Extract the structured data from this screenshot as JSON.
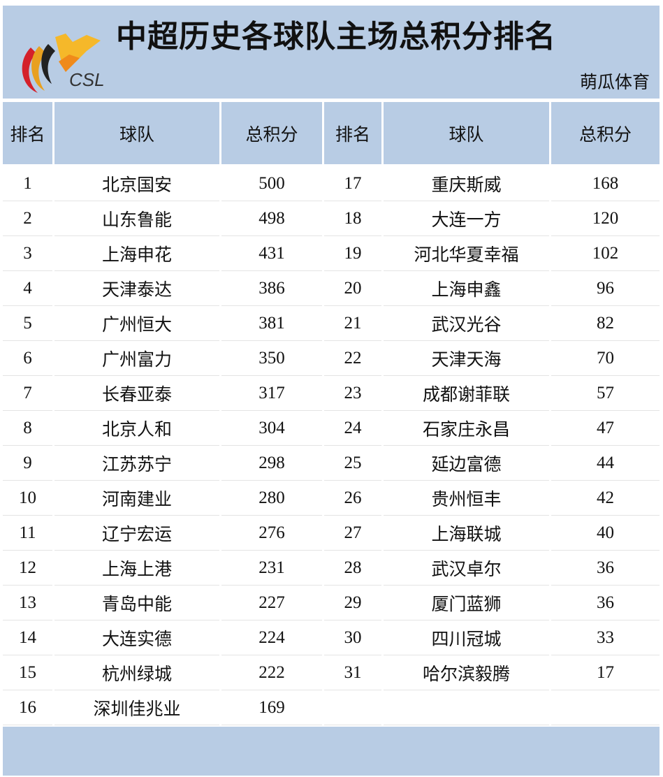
{
  "header": {
    "title": "中超历史各球队主场总积分排名",
    "brand": "萌瓜体育",
    "logo_text": "CSL"
  },
  "columns": [
    "排名",
    "球队",
    "总积分",
    "排名",
    "球队",
    "总积分"
  ],
  "colors": {
    "header_bg": "#b8cce4"
  },
  "rows": [
    {
      "rank": "1",
      "team": "北京国安",
      "points": "500",
      "rank2": "17",
      "team2": "重庆斯威",
      "points2": "168"
    },
    {
      "rank": "2",
      "team": "山东鲁能",
      "points": "498",
      "rank2": "18",
      "team2": "大连一方",
      "points2": "120"
    },
    {
      "rank": "3",
      "team": "上海申花",
      "points": "431",
      "rank2": "19",
      "team2": "河北华夏幸福",
      "points2": "102"
    },
    {
      "rank": "4",
      "team": "天津泰达",
      "points": "386",
      "rank2": "20",
      "team2": "上海申鑫",
      "points2": "96"
    },
    {
      "rank": "5",
      "team": "广州恒大",
      "points": "381",
      "rank2": "21",
      "team2": "武汉光谷",
      "points2": "82"
    },
    {
      "rank": "6",
      "team": "广州富力",
      "points": "350",
      "rank2": "22",
      "team2": "天津天海",
      "points2": "70"
    },
    {
      "rank": "7",
      "team": "长春亚泰",
      "points": "317",
      "rank2": "23",
      "team2": "成都谢菲联",
      "points2": "57"
    },
    {
      "rank": "8",
      "team": "北京人和",
      "points": "304",
      "rank2": "24",
      "team2": "石家庄永昌",
      "points2": "47"
    },
    {
      "rank": "9",
      "team": "江苏苏宁",
      "points": "298",
      "rank2": "25",
      "team2": "延边富德",
      "points2": "44"
    },
    {
      "rank": "10",
      "team": "河南建业",
      "points": "280",
      "rank2": "26",
      "team2": "贵州恒丰",
      "points2": "42"
    },
    {
      "rank": "11",
      "team": "辽宁宏运",
      "points": "276",
      "rank2": "27",
      "team2": "上海联城",
      "points2": "40"
    },
    {
      "rank": "12",
      "team": "上海上港",
      "points": "231",
      "rank2": "28",
      "team2": "武汉卓尔",
      "points2": "36"
    },
    {
      "rank": "13",
      "team": "青岛中能",
      "points": "227",
      "rank2": "29",
      "team2": "厦门蓝狮",
      "points2": "36"
    },
    {
      "rank": "14",
      "team": "大连实德",
      "points": "224",
      "rank2": "30",
      "team2": "四川冠城",
      "points2": "33"
    },
    {
      "rank": "15",
      "team": "杭州绿城",
      "points": "222",
      "rank2": "31",
      "team2": "哈尔滨毅腾",
      "points2": "17"
    },
    {
      "rank": "16",
      "team": "深圳佳兆业",
      "points": "169",
      "rank2": "",
      "team2": "",
      "points2": ""
    }
  ]
}
